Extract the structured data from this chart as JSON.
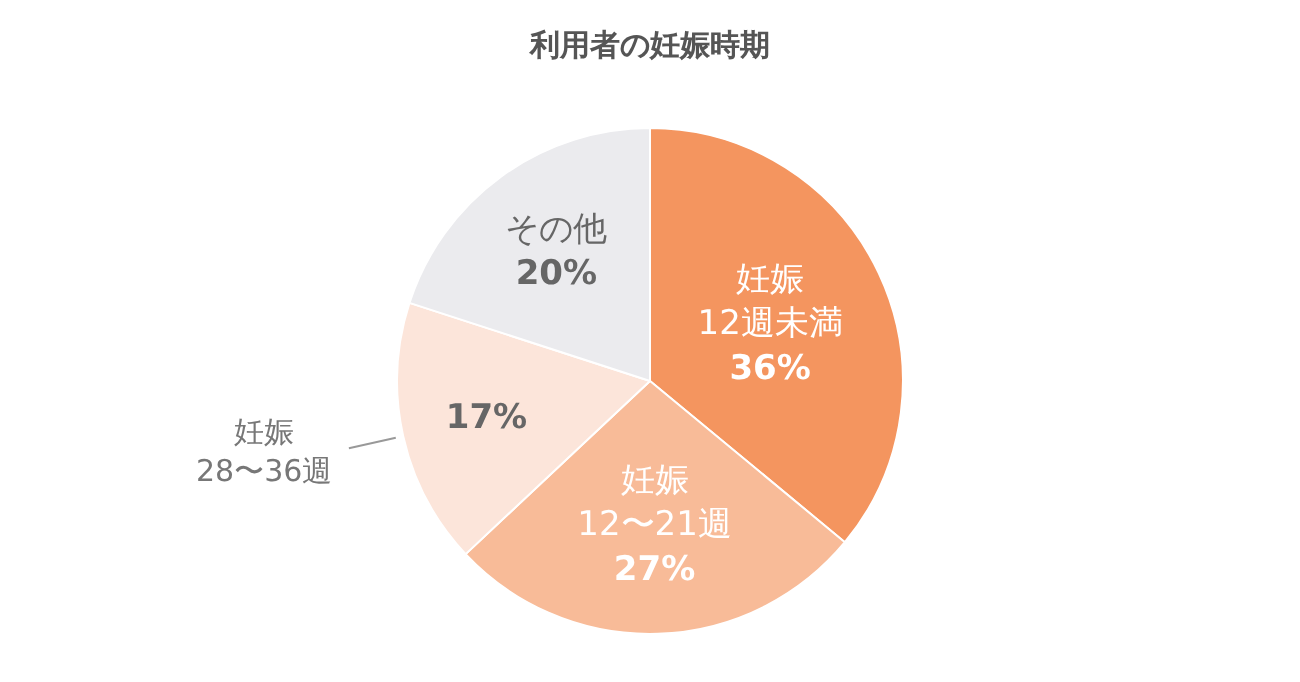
{
  "chart_data": {
    "type": "pie",
    "title": "利用者の妊娠時期",
    "categories": [
      "妊娠\n12週未満",
      "妊娠\n12〜21週",
      "妊娠\n28〜36週",
      "その他"
    ],
    "values": [
      36,
      27,
      17,
      20
    ],
    "value_labels": [
      "36%",
      "27%",
      "17%",
      "20%"
    ],
    "colors": [
      "#f4955f",
      "#f8bb98",
      "#fce5da",
      "#ebebee"
    ],
    "legend": false
  }
}
